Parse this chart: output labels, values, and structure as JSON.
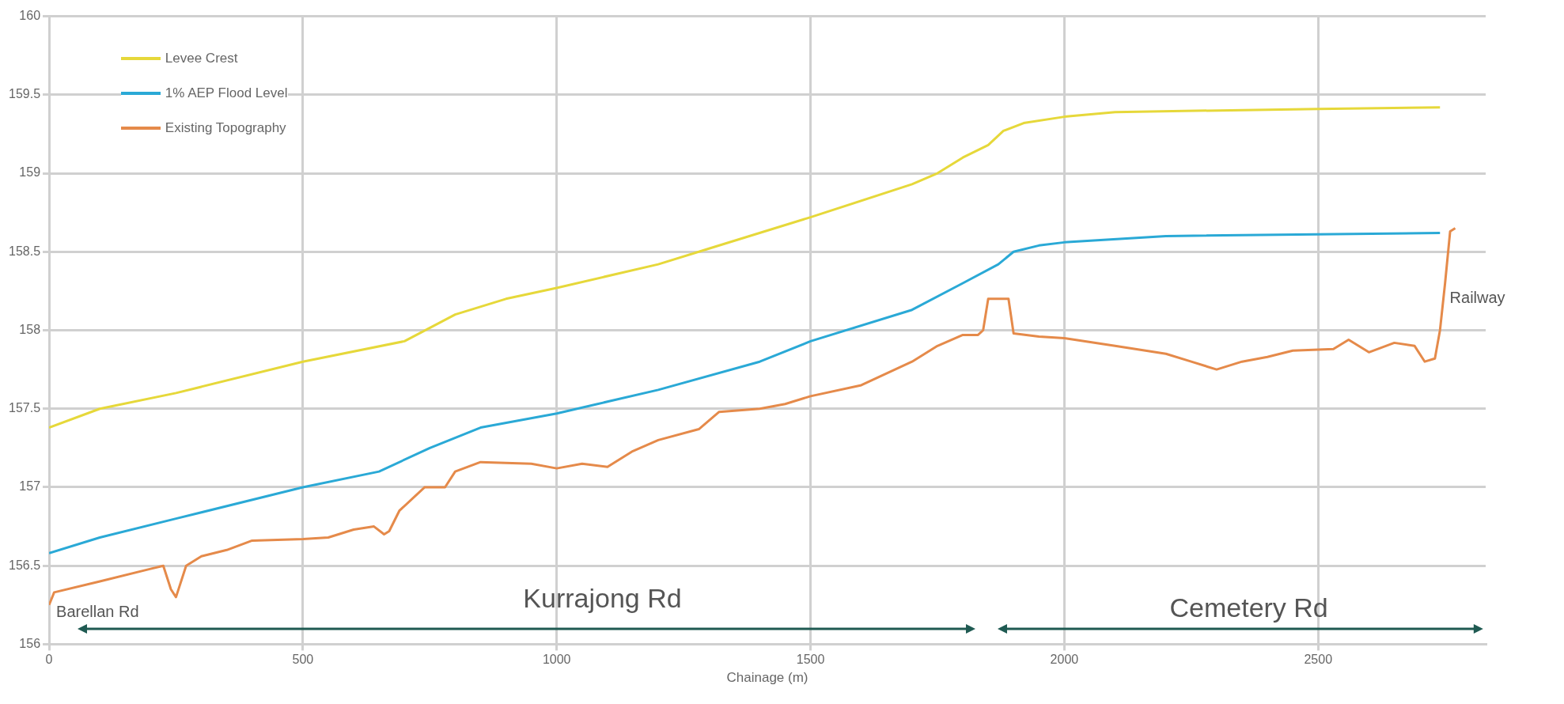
{
  "chart_data": {
    "type": "line",
    "xlabel": "Chainage (m)",
    "xlim": [
      0,
      2830
    ],
    "xticks": [
      0,
      500,
      1000,
      1500,
      2000,
      2500
    ],
    "ylim": [
      156,
      160
    ],
    "yticks": [
      156,
      156.5,
      157,
      157.5,
      158,
      158.5,
      159,
      159.5,
      160
    ],
    "grid": true,
    "legend": "top left",
    "marker": "none",
    "line_style": "solid",
    "series": [
      {
        "name": "Levee Crest",
        "color": "#e6d83a",
        "x": [
          0,
          100,
          250,
          500,
          700,
          800,
          900,
          1000,
          1200,
          1300,
          1500,
          1700,
          1750,
          1800,
          1850,
          1880,
          1920,
          2000,
          2100,
          2500,
          2740
        ],
        "values": [
          157.38,
          157.5,
          157.6,
          157.8,
          157.93,
          158.1,
          158.2,
          158.27,
          158.42,
          158.52,
          158.72,
          158.93,
          159.0,
          159.1,
          159.18,
          159.27,
          159.32,
          159.36,
          159.39,
          159.41,
          159.42
        ]
      },
      {
        "name": "1% AEP Flood Level",
        "color": "#2aa9d6",
        "x": [
          0,
          100,
          250,
          500,
          650,
          750,
          850,
          1000,
          1200,
          1400,
          1500,
          1700,
          1800,
          1870,
          1900,
          1950,
          2000,
          2200,
          2740
        ],
        "values": [
          156.58,
          156.68,
          156.8,
          157.0,
          157.1,
          157.25,
          157.38,
          157.47,
          157.62,
          157.8,
          157.93,
          158.13,
          158.3,
          158.42,
          158.5,
          158.54,
          158.56,
          158.6,
          158.62
        ]
      },
      {
        "name": "Existing Topography",
        "color": "#e58a4a",
        "x": [
          0,
          10,
          100,
          200,
          225,
          240,
          250,
          270,
          300,
          350,
          400,
          500,
          550,
          600,
          640,
          660,
          670,
          690,
          740,
          780,
          800,
          850,
          950,
          1000,
          1050,
          1100,
          1150,
          1200,
          1280,
          1320,
          1400,
          1450,
          1500,
          1600,
          1700,
          1750,
          1800,
          1830,
          1840,
          1850,
          1890,
          1900,
          1950,
          2000,
          2100,
          2200,
          2250,
          2300,
          2350,
          2400,
          2450,
          2530,
          2560,
          2600,
          2650,
          2690,
          2710,
          2730,
          2740,
          2750,
          2760,
          2770
        ],
        "values": [
          156.25,
          156.33,
          156.4,
          156.48,
          156.5,
          156.35,
          156.3,
          156.5,
          156.56,
          156.6,
          156.66,
          156.67,
          156.68,
          156.73,
          156.75,
          156.7,
          156.72,
          156.85,
          157.0,
          157.0,
          157.1,
          157.16,
          157.15,
          157.12,
          157.15,
          157.13,
          157.23,
          157.3,
          157.37,
          157.48,
          157.5,
          157.53,
          157.58,
          157.65,
          157.8,
          157.9,
          157.97,
          157.97,
          158.0,
          158.2,
          158.2,
          157.98,
          157.96,
          157.95,
          157.9,
          157.85,
          157.8,
          157.75,
          157.8,
          157.83,
          157.87,
          157.88,
          157.94,
          157.86,
          157.92,
          157.9,
          157.8,
          157.82,
          158.0,
          158.3,
          158.63,
          158.65
        ]
      }
    ],
    "annotations": [
      "Barellan Rd",
      "Kurrajong Rd",
      "Cemetery Rd",
      "Railway"
    ]
  }
}
